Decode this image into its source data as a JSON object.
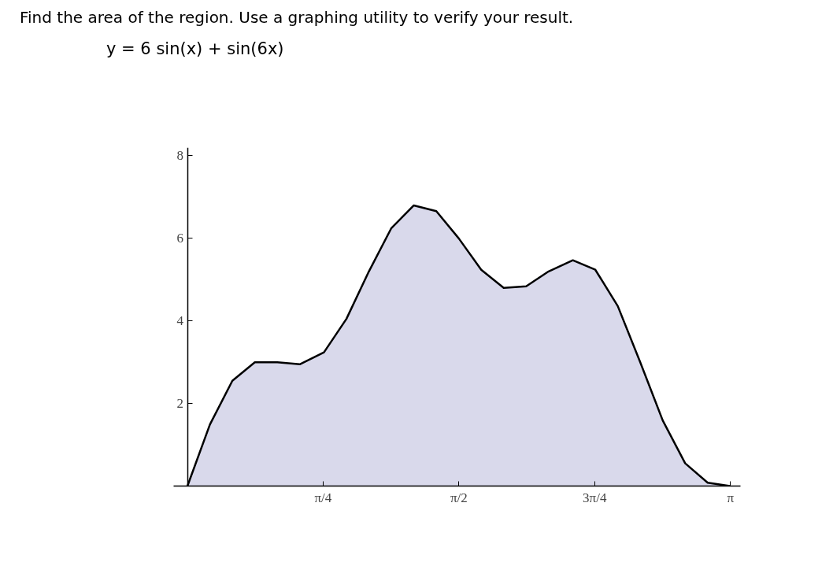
{
  "chart_data": {
    "type": "area",
    "title": "Find the area of the region. Use a graphing utility to verify your result.",
    "subtitle": "y = 6 sin(x) + sin(6x)",
    "x": [
      0,
      0.13,
      0.26,
      0.39,
      0.52,
      0.65,
      0.79,
      0.92,
      1.05,
      1.18,
      1.31,
      1.44,
      1.57,
      1.7,
      1.83,
      1.96,
      2.09,
      2.23,
      2.36,
      2.49,
      2.62,
      2.75,
      2.88,
      3.01,
      3.14
    ],
    "series": [
      {
        "color": "#d9d9eb",
        "values": [
          0,
          1.49,
          2.55,
          3.0,
          3.0,
          2.95,
          3.24,
          4.05,
          5.2,
          6.25,
          6.8,
          6.66,
          6.0,
          5.24,
          4.8,
          4.84,
          5.2,
          5.47,
          5.24,
          4.36,
          3.0,
          1.59,
          0.55,
          0.08,
          0
        ]
      }
    ],
    "xlim": [
      -0.08,
      3.2
    ],
    "ylim": [
      0,
      8.2
    ],
    "xticks": [
      {
        "value": 0.785,
        "label": "π/4"
      },
      {
        "value": 1.571,
        "label": "π/2"
      },
      {
        "value": 2.356,
        "label": "3π/4"
      },
      {
        "value": 3.142,
        "label": "π"
      }
    ],
    "yticks": [
      2,
      4,
      6,
      8
    ],
    "grid": false
  }
}
